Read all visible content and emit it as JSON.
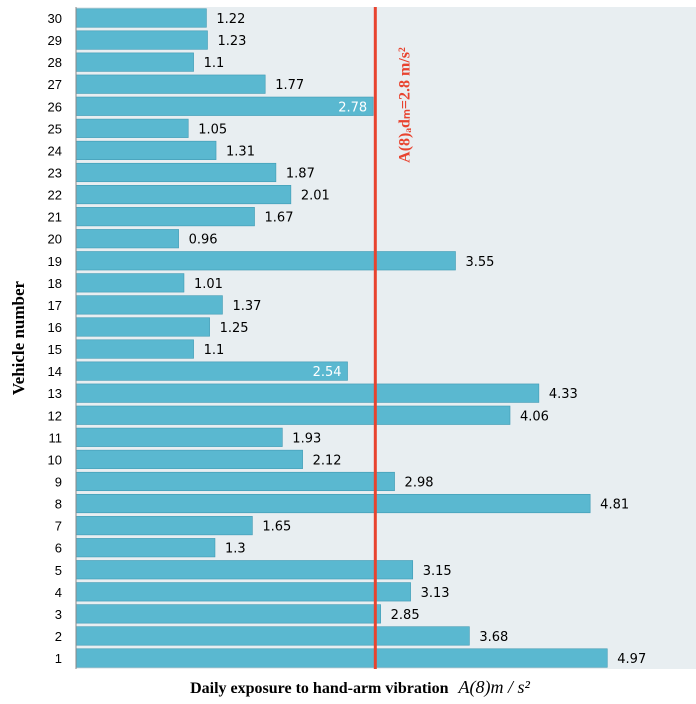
{
  "chart_data": {
    "type": "bar",
    "orientation": "horizontal",
    "categories": [
      "1",
      "2",
      "3",
      "4",
      "5",
      "6",
      "7",
      "8",
      "9",
      "10",
      "11",
      "12",
      "13",
      "14",
      "15",
      "16",
      "17",
      "18",
      "19",
      "20",
      "21",
      "22",
      "23",
      "24",
      "25",
      "26",
      "27",
      "28",
      "29",
      "30"
    ],
    "values": [
      4.97,
      3.68,
      2.85,
      3.13,
      3.15,
      1.3,
      1.65,
      4.81,
      2.98,
      2.12,
      1.93,
      4.06,
      4.33,
      2.54,
      1.1,
      1.25,
      1.37,
      1.01,
      3.55,
      0.96,
      1.67,
      2.01,
      1.87,
      1.31,
      1.05,
      2.78,
      1.77,
      1.1,
      1.23,
      1.22
    ],
    "value_labels": [
      "4.97",
      "3.68",
      "2.85",
      "3.13",
      "3.15",
      "1.3",
      "1.65",
      "4.81",
      "2.98",
      "2.12",
      "1.93",
      "4.06",
      "4.33",
      "2.54",
      "1.1",
      "1.25",
      "1.37",
      "1.01",
      "3.55",
      "0.96",
      "1.67",
      "2.01",
      "1.87",
      "1.31",
      "1.05",
      "2.78",
      "1.77",
      "1.1",
      "1.23",
      "1.22"
    ],
    "xlabel": "Daily exposure to hand-arm vibration",
    "xlabel_math": "A(8)m / s²",
    "ylabel": "Vehicle number",
    "xlim": [
      0,
      5.8
    ],
    "reference_line": {
      "value": 2.8,
      "label": "A(8)ₐdₘ=2.8 m/s²",
      "color": "#e8432f"
    },
    "bar_color": "#5ab8d0",
    "plot_background": "#e8eef1",
    "grid": false,
    "legend": "none"
  }
}
